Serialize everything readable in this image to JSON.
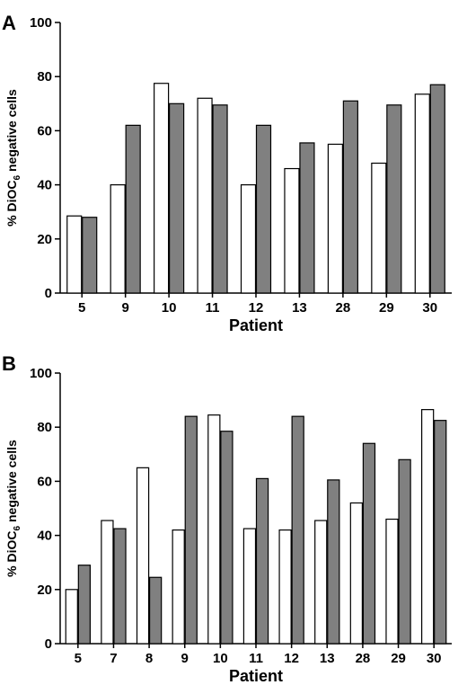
{
  "chart_data": [
    {
      "type": "bar",
      "panel": "A",
      "xlabel": "Patient",
      "ylabel_prefix": "% DiOC",
      "ylabel_sub": "6",
      "ylabel_suffix": " negative cells",
      "ylim": [
        0,
        100
      ],
      "yticks": [
        "0",
        "20",
        "40",
        "60",
        "80",
        "100"
      ],
      "categories": [
        "5",
        "9",
        "10",
        "11",
        "12",
        "13",
        "28",
        "29",
        "30"
      ],
      "series": [
        {
          "color": "#ffffff",
          "values": [
            28.5,
            40,
            77.5,
            72,
            40,
            46,
            55,
            48,
            73.5
          ]
        },
        {
          "color": "#808080",
          "values": [
            28,
            62,
            70,
            69.5,
            62,
            55.5,
            71,
            69.5,
            77
          ]
        }
      ]
    },
    {
      "type": "bar",
      "panel": "B",
      "xlabel": "Patient",
      "ylabel_prefix": "% DiOC",
      "ylabel_sub": "6",
      "ylabel_suffix": " negative cells",
      "ylim": [
        0,
        100
      ],
      "yticks": [
        "0",
        "20",
        "40",
        "60",
        "80",
        "100"
      ],
      "categories": [
        "5",
        "7",
        "8",
        "9",
        "10",
        "11",
        "12",
        "13",
        "28",
        "29",
        "30"
      ],
      "series": [
        {
          "color": "#ffffff",
          "values": [
            20,
            45.5,
            65,
            42,
            84.5,
            42.5,
            42,
            45.5,
            52,
            46,
            86.5
          ]
        },
        {
          "color": "#808080",
          "values": [
            29,
            42.5,
            24.5,
            84,
            78.5,
            61,
            84,
            60.5,
            74,
            68,
            82.5
          ]
        }
      ]
    }
  ]
}
